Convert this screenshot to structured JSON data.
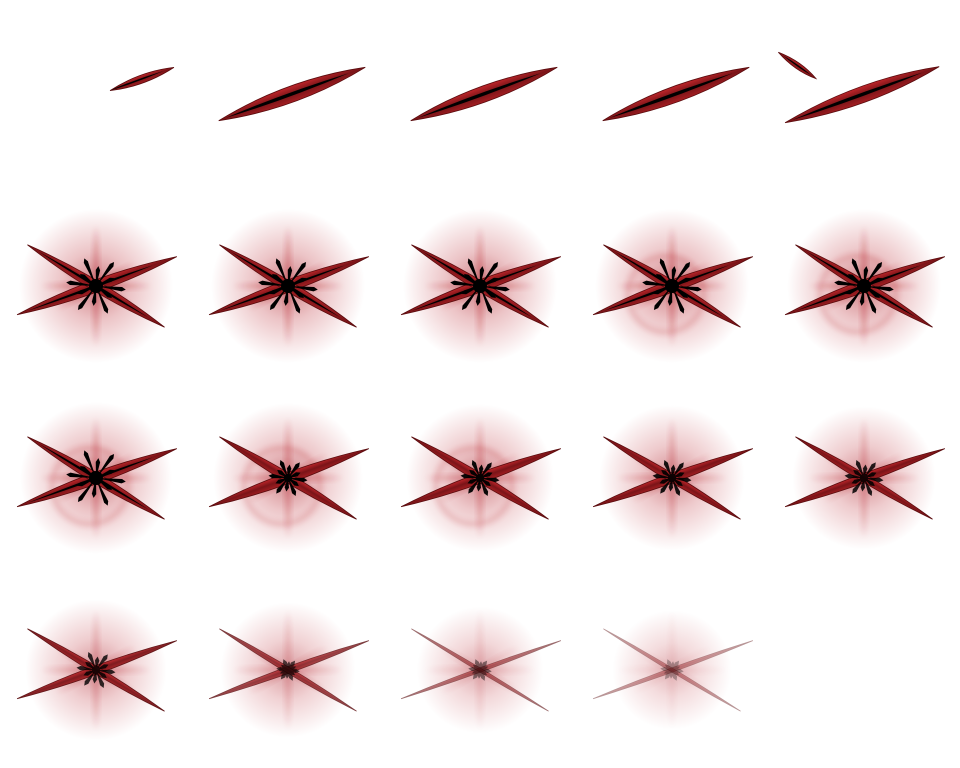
{
  "sprite_sheet": {
    "columns": 5,
    "rows": 4,
    "frame_count": 19,
    "background": "#ffffff",
    "colors": {
      "blade": "#8e1c1f",
      "blade_edge": "#5a0c0e",
      "core": "#000000",
      "glow": "#b4141e"
    },
    "frames": [
      {
        "index": 1,
        "phase": "slash",
        "intensity": 0.35
      },
      {
        "index": 2,
        "phase": "slash",
        "intensity": 0.75
      },
      {
        "index": 3,
        "phase": "slash",
        "intensity": 0.9
      },
      {
        "index": 4,
        "phase": "slash",
        "intensity": 0.9
      },
      {
        "index": 5,
        "phase": "cross",
        "intensity": 1.0
      },
      {
        "index": 6,
        "phase": "burst",
        "intensity": 1.0
      },
      {
        "index": 7,
        "phase": "burst",
        "intensity": 1.0
      },
      {
        "index": 8,
        "phase": "burst",
        "intensity": 1.0
      },
      {
        "index": 9,
        "phase": "burst",
        "intensity": 1.0,
        "ring": true
      },
      {
        "index": 10,
        "phase": "burst",
        "intensity": 1.0,
        "ring": true
      },
      {
        "index": 11,
        "phase": "burst",
        "intensity": 0.95,
        "ring": true
      },
      {
        "index": 12,
        "phase": "burst",
        "intensity": 0.9,
        "ring": true
      },
      {
        "index": 13,
        "phase": "burst",
        "intensity": 0.85,
        "ring": true
      },
      {
        "index": 14,
        "phase": "burst",
        "intensity": 0.8
      },
      {
        "index": 15,
        "phase": "burst",
        "intensity": 0.75
      },
      {
        "index": 16,
        "phase": "burst",
        "intensity": 0.7
      },
      {
        "index": 17,
        "phase": "fade",
        "intensity": 0.55
      },
      {
        "index": 18,
        "phase": "fade",
        "intensity": 0.35
      },
      {
        "index": 19,
        "phase": "fade",
        "intensity": 0.18
      }
    ]
  }
}
